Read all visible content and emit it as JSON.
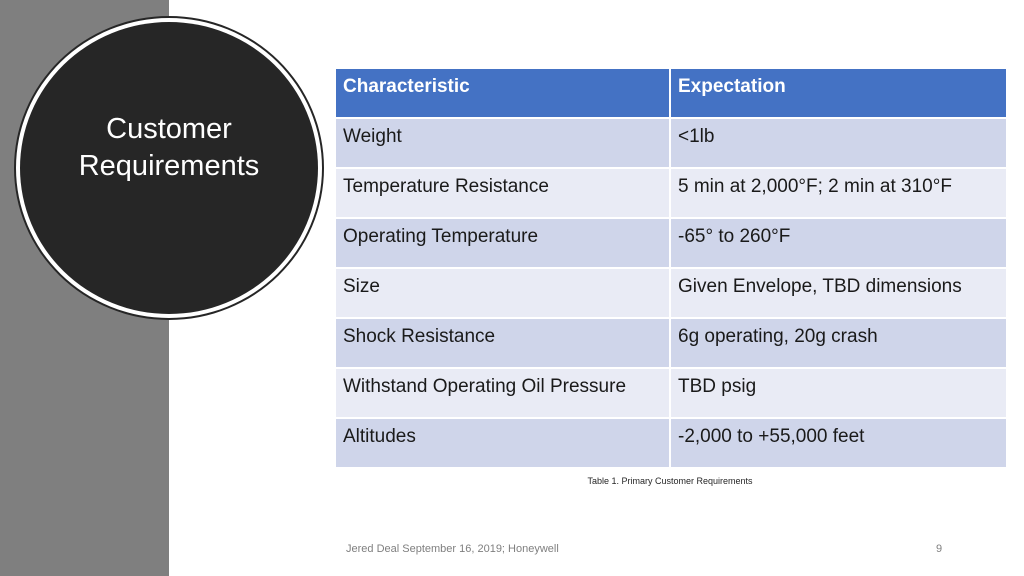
{
  "slide": {
    "title": "Customer Requirements",
    "footer": "Jered Deal September 16, 2019; Honeywell",
    "page_number": "9"
  },
  "table": {
    "headers": [
      "Characteristic",
      "Expectation"
    ],
    "rows": [
      [
        "Weight",
        "<1lb"
      ],
      [
        "Temperature Resistance",
        "5 min at 2,000°F; 2 min at 310°F"
      ],
      [
        "Operating Temperature",
        "-65° to 260°F"
      ],
      [
        "Size",
        "Given Envelope, TBD dimensions"
      ],
      [
        "Shock Resistance",
        "6g operating, 20g crash"
      ],
      [
        "Withstand Operating Oil Pressure",
        "TBD psig"
      ],
      [
        "Altitudes",
        "-2,000 to +55,000 feet"
      ]
    ],
    "caption": "Table 1. Primary Customer Requirements"
  },
  "colors": {
    "header_blue": "#4472c4",
    "row_dark": "#cfd5ea",
    "row_light": "#e9ebf5",
    "circle": "#262626",
    "side_band": "#7f7f7f"
  }
}
